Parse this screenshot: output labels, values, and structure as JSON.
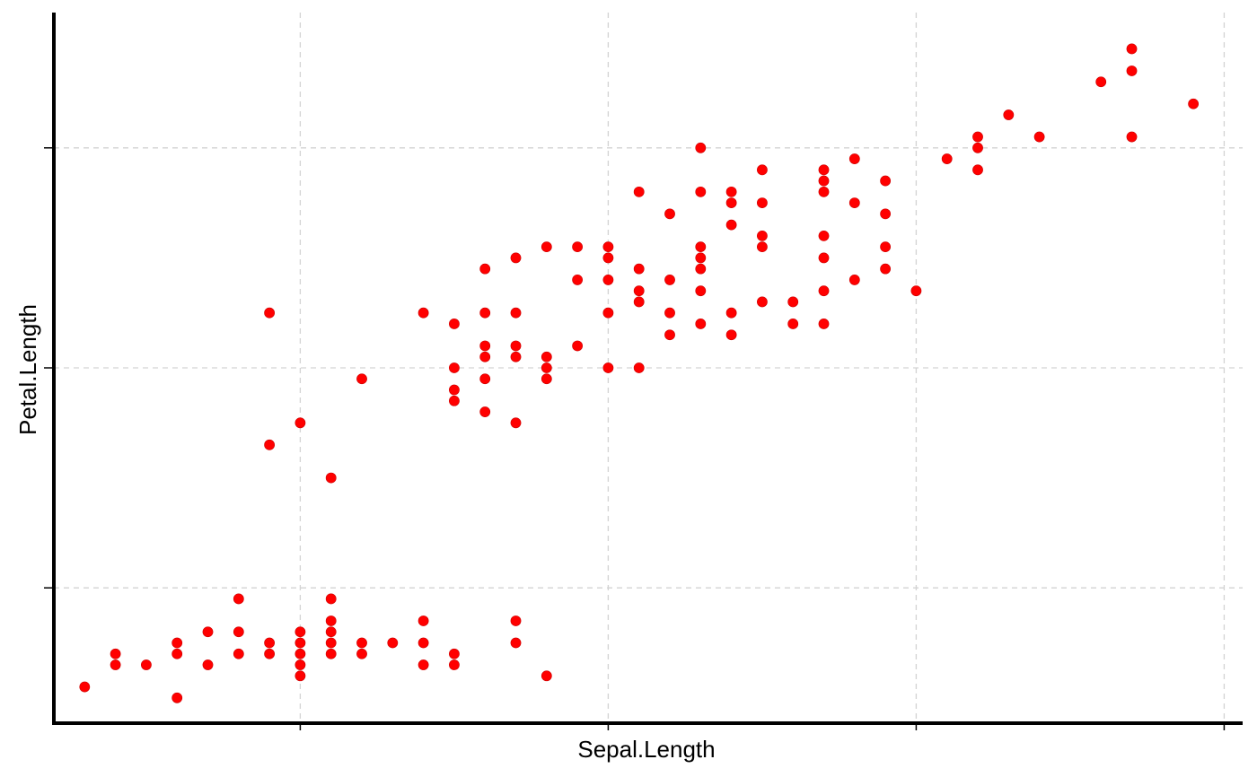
{
  "chart_data": {
    "type": "scatter",
    "xlabel": "Sepal.Length",
    "ylabel": "Petal.Length",
    "xlim": [
      4.2,
      8.06
    ],
    "ylim": [
      0.77,
      7.23
    ],
    "x_ticks": [
      5,
      6,
      7,
      8
    ],
    "y_ticks": [
      2,
      4,
      6
    ],
    "tick_labels_shown": false,
    "grid": true,
    "point_color": "#ff0000",
    "points": [
      [
        4.3,
        1.1
      ],
      [
        4.4,
        1.3
      ],
      [
        4.4,
        1.4
      ],
      [
        4.5,
        1.3
      ],
      [
        4.6,
        1.0
      ],
      [
        4.6,
        1.4
      ],
      [
        4.6,
        1.5
      ],
      [
        4.7,
        1.3
      ],
      [
        4.7,
        1.6
      ],
      [
        4.8,
        1.4
      ],
      [
        4.8,
        1.6
      ],
      [
        4.8,
        1.9
      ],
      [
        4.9,
        1.5
      ],
      [
        4.9,
        1.4
      ],
      [
        4.9,
        3.3
      ],
      [
        4.9,
        4.5
      ],
      [
        5.0,
        1.2
      ],
      [
        5.0,
        1.3
      ],
      [
        5.0,
        1.4
      ],
      [
        5.0,
        1.5
      ],
      [
        5.0,
        1.6
      ],
      [
        5.0,
        3.5
      ],
      [
        5.1,
        1.4
      ],
      [
        5.1,
        1.5
      ],
      [
        5.1,
        1.6
      ],
      [
        5.1,
        1.7
      ],
      [
        5.1,
        1.9
      ],
      [
        5.1,
        3.0
      ],
      [
        5.2,
        1.4
      ],
      [
        5.2,
        1.5
      ],
      [
        5.2,
        3.9
      ],
      [
        5.3,
        1.5
      ],
      [
        5.4,
        1.3
      ],
      [
        5.4,
        1.5
      ],
      [
        5.4,
        1.7
      ],
      [
        5.4,
        4.5
      ],
      [
        5.5,
        1.3
      ],
      [
        5.5,
        1.4
      ],
      [
        5.5,
        3.7
      ],
      [
        5.5,
        3.8
      ],
      [
        5.5,
        4.0
      ],
      [
        5.5,
        4.4
      ],
      [
        5.6,
        3.6
      ],
      [
        5.6,
        3.9
      ],
      [
        5.6,
        4.1
      ],
      [
        5.6,
        4.2
      ],
      [
        5.6,
        4.5
      ],
      [
        5.6,
        4.9
      ],
      [
        5.7,
        1.5
      ],
      [
        5.7,
        1.7
      ],
      [
        5.7,
        3.5
      ],
      [
        5.7,
        4.1
      ],
      [
        5.7,
        4.2
      ],
      [
        5.7,
        4.5
      ],
      [
        5.7,
        5.0
      ],
      [
        5.8,
        1.2
      ],
      [
        5.8,
        3.9
      ],
      [
        5.8,
        4.0
      ],
      [
        5.8,
        4.1
      ],
      [
        5.8,
        5.1
      ],
      [
        5.9,
        4.2
      ],
      [
        5.9,
        4.8
      ],
      [
        5.9,
        5.1
      ],
      [
        6.0,
        4.0
      ],
      [
        6.0,
        4.5
      ],
      [
        6.0,
        4.8
      ],
      [
        6.0,
        5.0
      ],
      [
        6.0,
        5.1
      ],
      [
        6.1,
        4.0
      ],
      [
        6.1,
        4.6
      ],
      [
        6.1,
        4.7
      ],
      [
        6.1,
        4.9
      ],
      [
        6.1,
        5.6
      ],
      [
        6.2,
        4.3
      ],
      [
        6.2,
        4.5
      ],
      [
        6.2,
        4.8
      ],
      [
        6.2,
        5.4
      ],
      [
        6.3,
        4.4
      ],
      [
        6.3,
        4.7
      ],
      [
        6.3,
        4.9
      ],
      [
        6.3,
        5.0
      ],
      [
        6.3,
        5.1
      ],
      [
        6.3,
        5.6
      ],
      [
        6.3,
        6.0
      ],
      [
        6.4,
        4.3
      ],
      [
        6.4,
        4.5
      ],
      [
        6.4,
        5.3
      ],
      [
        6.4,
        5.5
      ],
      [
        6.4,
        5.6
      ],
      [
        6.5,
        4.6
      ],
      [
        6.5,
        5.1
      ],
      [
        6.5,
        5.2
      ],
      [
        6.5,
        5.5
      ],
      [
        6.5,
        5.8
      ],
      [
        6.6,
        4.4
      ],
      [
        6.6,
        4.6
      ],
      [
        6.7,
        4.4
      ],
      [
        6.7,
        4.7
      ],
      [
        6.7,
        5.0
      ],
      [
        6.7,
        5.2
      ],
      [
        6.7,
        5.6
      ],
      [
        6.7,
        5.7
      ],
      [
        6.7,
        5.8
      ],
      [
        6.8,
        4.8
      ],
      [
        6.8,
        5.5
      ],
      [
        6.8,
        5.9
      ],
      [
        6.9,
        4.9
      ],
      [
        6.9,
        5.1
      ],
      [
        6.9,
        5.4
      ],
      [
        6.9,
        5.7
      ],
      [
        7.0,
        4.7
      ],
      [
        7.1,
        5.9
      ],
      [
        7.2,
        5.8
      ],
      [
        7.2,
        6.0
      ],
      [
        7.2,
        6.1
      ],
      [
        7.3,
        6.3
      ],
      [
        7.4,
        6.1
      ],
      [
        7.6,
        6.6
      ],
      [
        7.7,
        6.1
      ],
      [
        7.7,
        6.7
      ],
      [
        7.7,
        6.9
      ],
      [
        7.9,
        6.4
      ]
    ]
  }
}
